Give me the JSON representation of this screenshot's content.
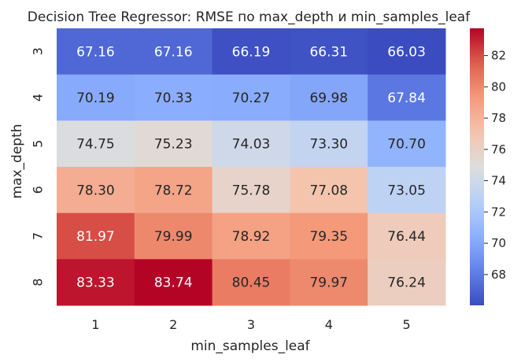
{
  "chart_data": {
    "type": "heatmap",
    "title": "Decision Tree Regressor: RMSE по max_depth и min_samples_leaf",
    "xlabel": "min_samples_leaf",
    "ylabel": "max_depth",
    "x_categories": [
      "1",
      "2",
      "3",
      "4",
      "5"
    ],
    "y_categories": [
      "3",
      "4",
      "5",
      "6",
      "7",
      "8"
    ],
    "values": [
      [
        67.16,
        67.16,
        66.19,
        66.31,
        66.03
      ],
      [
        70.19,
        70.33,
        70.27,
        69.98,
        67.84
      ],
      [
        74.75,
        75.23,
        74.03,
        73.3,
        70.7
      ],
      [
        78.3,
        78.72,
        75.78,
        77.08,
        73.05
      ],
      [
        81.97,
        79.99,
        78.92,
        79.35,
        76.44
      ],
      [
        83.33,
        83.74,
        80.45,
        79.97,
        76.24
      ]
    ],
    "cell_labels": [
      [
        "67.16",
        "67.16",
        "66.19",
        "66.31",
        "66.03"
      ],
      [
        "70.19",
        "70.33",
        "70.27",
        "69.98",
        "67.84"
      ],
      [
        "74.75",
        "75.23",
        "74.03",
        "73.30",
        "70.70"
      ],
      [
        "78.30",
        "78.72",
        "75.78",
        "77.08",
        "73.05"
      ],
      [
        "81.97",
        "79.99",
        "78.92",
        "79.35",
        "76.44"
      ],
      [
        "83.33",
        "83.74",
        "80.45",
        "79.97",
        "76.24"
      ]
    ],
    "colormap": "coolwarm",
    "vmin": 66.03,
    "vmax": 83.74,
    "colorbar": {
      "ticks": [
        68,
        70,
        72,
        74,
        76,
        78,
        80,
        82
      ],
      "tick_labels": [
        "68",
        "70",
        "72",
        "74",
        "76",
        "78",
        "80",
        "82"
      ]
    }
  }
}
